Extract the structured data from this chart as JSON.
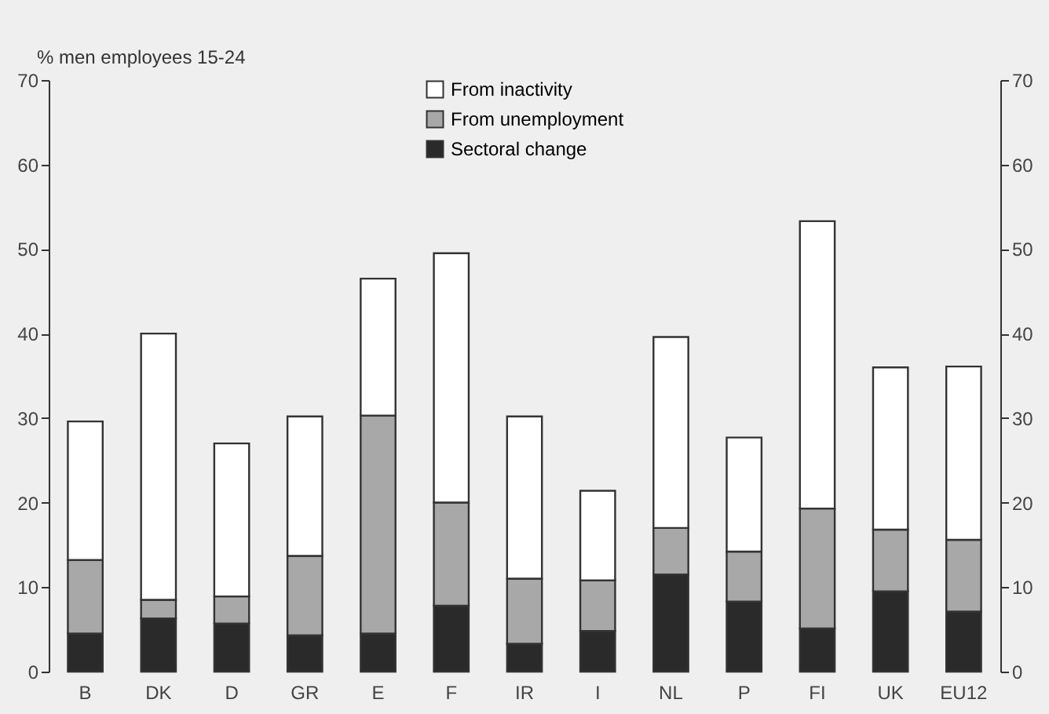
{
  "chart_data": {
    "type": "bar",
    "stacked": true,
    "ylabel": "% men employees 15-24",
    "categories": [
      "B",
      "DK",
      "D",
      "GR",
      "E",
      "F",
      "IR",
      "I",
      "NL",
      "P",
      "FI",
      "UK",
      "EU12"
    ],
    "series": [
      {
        "name": "Sectoral change",
        "color": "#2a2a2a",
        "values": [
          4.5,
          6.3,
          5.7,
          4.3,
          4.5,
          7.8,
          3.3,
          4.8,
          11.5,
          8.3,
          5.1,
          9.5,
          7.1
        ]
      },
      {
        "name": "From unemployment",
        "color": "#a8a8a8",
        "values": [
          8.7,
          2.2,
          3.2,
          9.4,
          25.8,
          12.2,
          7.7,
          6.0,
          5.5,
          5.9,
          14.2,
          7.3,
          8.5
        ]
      },
      {
        "name": "From inactivity",
        "color": "#ffffff",
        "values": [
          16.4,
          31.5,
          18.1,
          16.5,
          16.2,
          29.5,
          19.2,
          10.6,
          22.6,
          13.5,
          34.0,
          19.2,
          20.5
        ]
      }
    ],
    "ylim": [
      0,
      70
    ],
    "yticks": [
      0,
      10,
      20,
      30,
      40,
      50,
      60,
      70
    ],
    "y2lim": [
      0,
      70
    ],
    "y2ticks": [
      0,
      10,
      20,
      30,
      40,
      50,
      60,
      70
    ],
    "grid": false,
    "legend": "top"
  }
}
